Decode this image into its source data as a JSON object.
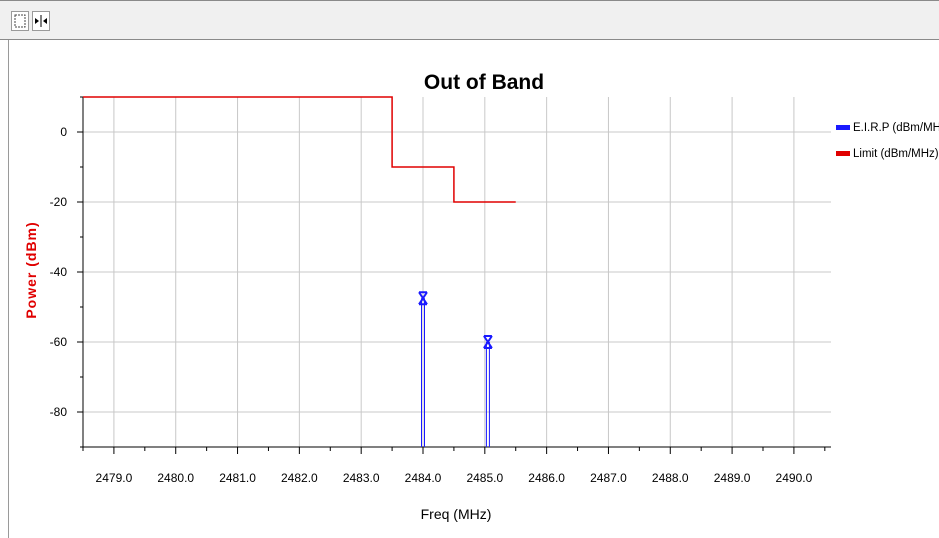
{
  "colors": {
    "eirp": "#1a1aff",
    "limit": "#e00000",
    "ylabel": "#e00000",
    "grid": "#c8c8c8"
  },
  "toolbar": {
    "buttons": [
      {
        "icon": "select-region-icon"
      },
      {
        "icon": "split-markers-icon"
      }
    ]
  },
  "chart_data": {
    "type": "line",
    "title": "Out of Band",
    "xlabel": "Freq (MHz)",
    "ylabel": "Power (dBm)",
    "xlim": [
      2478.5,
      2490.6
    ],
    "ylim": [
      -90,
      10
    ],
    "xticks": [
      2479.0,
      2480.0,
      2481.0,
      2482.0,
      2483.0,
      2484.0,
      2485.0,
      2486.0,
      2487.0,
      2488.0,
      2489.0,
      2490.0
    ],
    "xtick_labels": [
      "2479.0",
      "2480.0",
      "2481.0",
      "2482.0",
      "2483.0",
      "2484.0",
      "2485.0",
      "2486.0",
      "2487.0",
      "2488.0",
      "2489.0",
      "2490.0"
    ],
    "yticks": [
      0,
      -20,
      -40,
      -60,
      -80
    ],
    "ytick_labels": [
      "0",
      "-20",
      "-40",
      "-60",
      "-80"
    ],
    "grid": true,
    "legend_position": "right",
    "series": [
      {
        "name": "E.I.R.P (dBm/MHz)",
        "color": "#1a1aff",
        "points": [
          {
            "x": 2484.0,
            "y": -47.5
          },
          {
            "x": 2485.05,
            "y": -60.0
          }
        ]
      },
      {
        "name": "Limit  (dBm/MHz)",
        "color": "#e00000",
        "points": [
          {
            "x": 2478.5,
            "y": 10
          },
          {
            "x": 2483.5,
            "y": 10
          },
          {
            "x": 2483.5,
            "y": -10
          },
          {
            "x": 2484.5,
            "y": -10
          },
          {
            "x": 2484.5,
            "y": -20
          },
          {
            "x": 2485.5,
            "y": -20
          }
        ]
      }
    ]
  }
}
